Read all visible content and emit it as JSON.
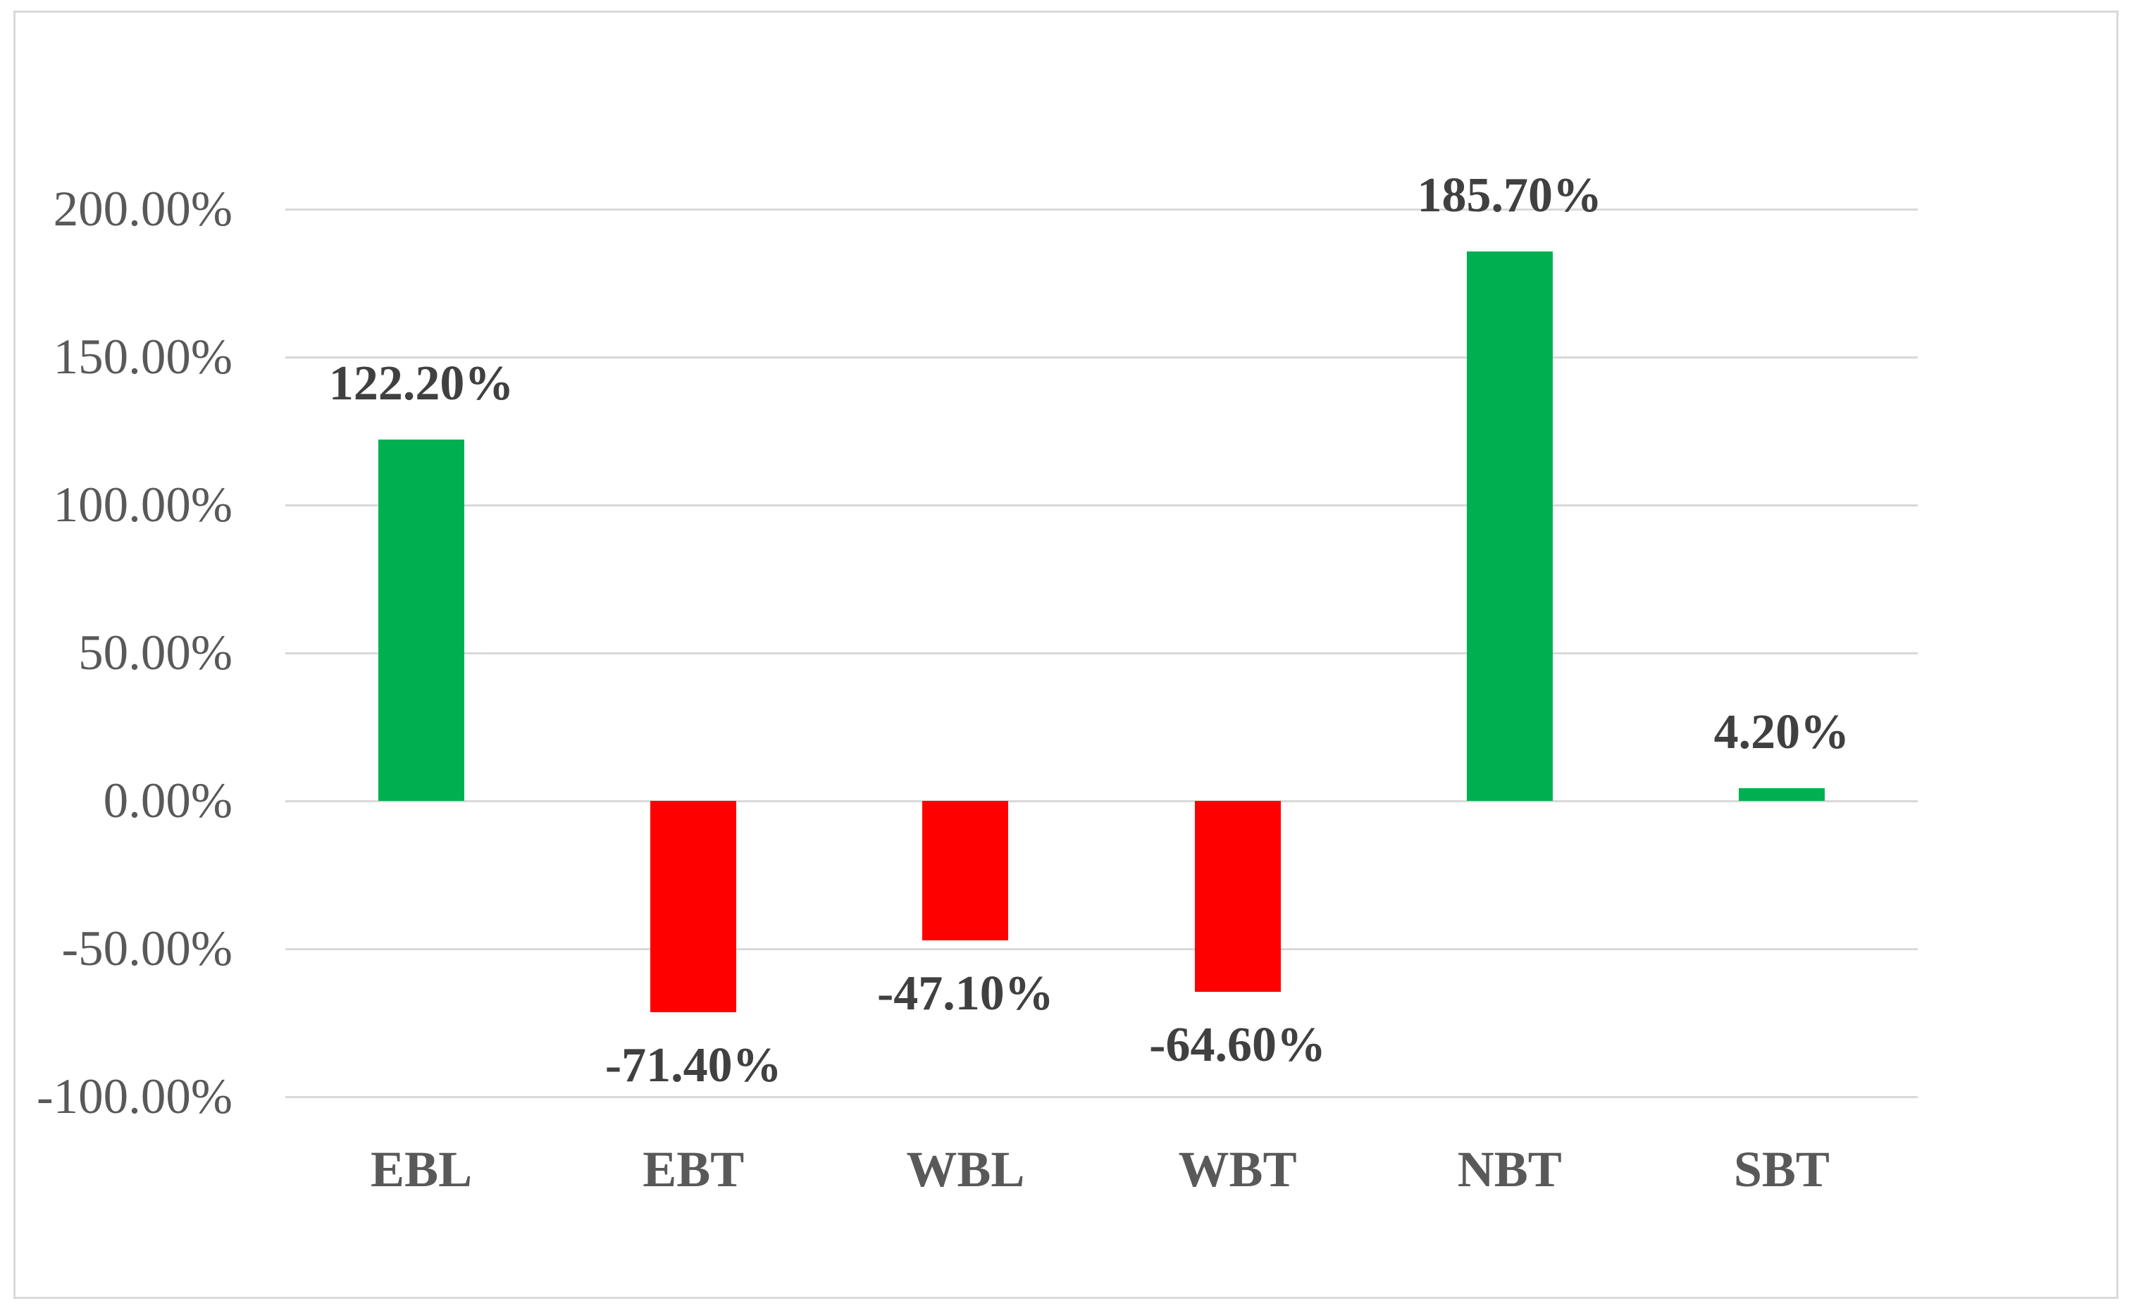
{
  "chart_data": {
    "type": "bar",
    "title": "",
    "xlabel": "",
    "ylabel": "",
    "categories": [
      "EBL",
      "EBT",
      "WBL",
      "WBT",
      "NBT",
      "SBT"
    ],
    "values": [
      122.2,
      -71.4,
      -47.1,
      -64.6,
      185.7,
      4.2
    ],
    "data_labels": [
      "122.20%",
      "-71.40%",
      "-47.10%",
      "-64.60%",
      "185.70%",
      "4.20%"
    ],
    "bar_colors": [
      "#00B050",
      "#FF0000",
      "#FF0000",
      "#FF0000",
      "#00B050",
      "#00B050"
    ],
    "positive_color": "#00B050",
    "negative_color": "#FF0000",
    "ylim": [
      -100,
      200
    ],
    "ytick_values": [
      200,
      150,
      100,
      50,
      0,
      -50,
      -100
    ],
    "ytick_labels": [
      "200.00%",
      "150.00%",
      "100.00%",
      "50.00%",
      "0.00%",
      "-50.00%",
      "-100.00%"
    ],
    "grid": "horizontal-only",
    "legend": "none",
    "gridline_color": "#D9D9D9",
    "frame_border_color": "#D9D9D9",
    "axis_label_color": "#595959",
    "category_label_color": "#595959",
    "data_label_color": "#404040",
    "background_color": "#FFFFFF"
  }
}
